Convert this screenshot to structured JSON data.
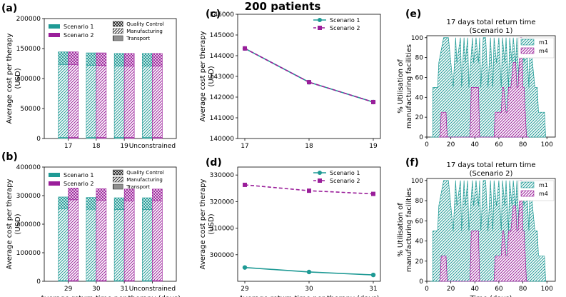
{
  "figure": {
    "suptitle": "200 patients",
    "panel_letters": [
      "(a)",
      "(b)",
      "(c)",
      "(d)",
      "(e)",
      "(f)"
    ]
  },
  "colors": {
    "scenario1": "#1f9a95",
    "scenario2": "#9a1e9a",
    "axis": "#000000"
  },
  "chart_data": [
    {
      "id": "a",
      "type": "bar",
      "title": "",
      "xlabel": "",
      "ylabel": "Average cost per therapy (USD)",
      "ylabel_lines": [
        "Average cost per therapy",
        "(USD)"
      ],
      "categories": [
        "17",
        "18",
        "19",
        "Unconstrained"
      ],
      "ylim": [
        0,
        200000
      ],
      "yticks": [
        0,
        50000,
        100000,
        150000,
        200000
      ],
      "ytick_labels": [
        "0",
        "50000",
        "100000",
        "150000",
        "200000"
      ],
      "series": [
        {
          "name": "Scenario 1",
          "values": [
            144400,
            142800,
            141800,
            141800
          ],
          "components": {
            "Transport": [
              2000,
              2000,
              2000,
              2000
            ],
            "Manufacturing": [
              121400,
              119800,
              118800,
              118800
            ],
            "Quality Control": [
              21000,
              21000,
              21000,
              21000
            ]
          }
        },
        {
          "name": "Scenario 2",
          "values": [
            144400,
            142800,
            141800,
            141800
          ],
          "components": {
            "Transport": [
              2000,
              2000,
              2000,
              2000
            ],
            "Manufacturing": [
              121400,
              119800,
              118800,
              118800
            ],
            "Quality Control": [
              21000,
              21000,
              21000,
              21000
            ]
          }
        }
      ],
      "legend_series": [
        "Scenario 1",
        "Scenario 2"
      ],
      "legend_components": [
        "Quality Control",
        "Manufacturing",
        "Transport"
      ]
    },
    {
      "id": "b",
      "type": "bar",
      "title": "",
      "xlabel": "Average return time per therapy (days)",
      "ylabel": "Average cost per therapy (USD)",
      "ylabel_lines": [
        "Average cost per therapy",
        "(USD)"
      ],
      "categories": [
        "29",
        "30",
        "31",
        "Unconstrained"
      ],
      "ylim": [
        0,
        400000
      ],
      "yticks": [
        0,
        100000,
        200000,
        300000,
        400000
      ],
      "ytick_labels": [
        "0",
        "100000",
        "200000",
        "300000",
        "400000"
      ],
      "series": [
        {
          "name": "Scenario 1",
          "values": [
            295200,
            293500,
            292400,
            292400
          ],
          "components": {
            "Transport": [
              3000,
              3000,
              3000,
              3000
            ],
            "Manufacturing": [
              251200,
              249500,
              248400,
              248400
            ],
            "Quality Control": [
              41000,
              41000,
              41000,
              41000
            ]
          }
        },
        {
          "name": "Scenario 2",
          "values": [
            326300,
            324100,
            322900,
            322900
          ],
          "components": {
            "Transport": [
              3000,
              3000,
              3000,
              3000
            ],
            "Manufacturing": [
              282300,
              280100,
              278900,
              278900
            ],
            "Quality Control": [
              41000,
              41000,
              41000,
              41000
            ]
          }
        }
      ],
      "legend_series": [
        "Scenario 1",
        "Scenario 2"
      ],
      "legend_components": [
        "Quality Control",
        "Manufacturing",
        "Transport"
      ]
    },
    {
      "id": "c",
      "type": "line",
      "title": "",
      "xlabel": "",
      "ylabel": "Average cost per therapy (USD)",
      "ylabel_lines": [
        "Average cost per therapy",
        "(USD)"
      ],
      "x": [
        17,
        18,
        19
      ],
      "xticks": [
        17,
        18,
        19
      ],
      "xlim": [
        17,
        19
      ],
      "ylim": [
        140000,
        146000
      ],
      "yticks": [
        140000,
        141000,
        142000,
        143000,
        144000,
        145000,
        146000
      ],
      "ytick_labels": [
        "140000",
        "141000",
        "142000",
        "143000",
        "144000",
        "145000",
        "146000"
      ],
      "series": [
        {
          "name": "Scenario 1",
          "values": [
            144350,
            142720,
            141760
          ],
          "marker": "circle",
          "dashed": false
        },
        {
          "name": "Scenario 2",
          "values": [
            144350,
            142720,
            141760
          ],
          "marker": "square",
          "dashed": true
        }
      ]
    },
    {
      "id": "d",
      "type": "line",
      "title": "",
      "xlabel": "Average return time per therapy (days)",
      "ylabel": "Average cost per therapy (USD)",
      "ylabel_lines": [
        "Average cost per therapy",
        "(USD)"
      ],
      "x": [
        29,
        30,
        31
      ],
      "xticks": [
        29,
        30,
        31
      ],
      "xlim": [
        29,
        31
      ],
      "ylim": [
        290000,
        333000
      ],
      "yticks": [
        300000,
        310000,
        320000,
        330000
      ],
      "ytick_labels": [
        "300000",
        "310000",
        "320000",
        "330000"
      ],
      "series": [
        {
          "name": "Scenario 1",
          "values": [
            295200,
            293500,
            292400
          ],
          "marker": "circle",
          "dashed": false
        },
        {
          "name": "Scenario 2",
          "values": [
            326300,
            324100,
            322900
          ],
          "marker": "square",
          "dashed": true
        }
      ]
    },
    {
      "id": "e",
      "type": "area",
      "title": "17 days total return time",
      "subtitle": "(Scenario 1)",
      "xlabel": "",
      "ylabel": "% Utilisation of manufacturing facilities",
      "ylabel_lines": [
        "% Utilisation of",
        "manufacturing facilities"
      ],
      "xlim": [
        0,
        107
      ],
      "ylim": [
        0,
        102
      ],
      "xticks": [
        0,
        20,
        40,
        60,
        80,
        100
      ],
      "yticks": [
        0,
        20,
        40,
        60,
        80,
        100
      ],
      "legend": [
        "m1",
        "m4"
      ],
      "series": [
        {
          "name": "m1",
          "x": [
            3,
            5,
            5,
            9,
            10,
            14,
            18,
            22,
            24,
            25,
            28,
            29,
            31,
            32,
            34,
            35,
            38,
            39,
            41,
            43,
            44,
            45,
            47,
            49,
            51,
            53,
            55,
            56,
            58,
            60,
            62,
            63,
            65,
            66,
            68,
            69,
            71,
            72,
            74,
            75,
            77,
            79,
            81,
            83,
            85,
            86,
            88,
            90,
            92,
            93,
            95,
            96,
            98,
            99
          ],
          "values": [
            0,
            0,
            50,
            50,
            75,
            100,
            100,
            50,
            100,
            75,
            100,
            50,
            100,
            75,
            100,
            50,
            100,
            75,
            100,
            75,
            100,
            50,
            100,
            100,
            50,
            100,
            50,
            100,
            75,
            100,
            50,
            100,
            75,
            100,
            50,
            100,
            75,
            100,
            75,
            100,
            50,
            100,
            75,
            100,
            50,
            100,
            75,
            50,
            50,
            25,
            25,
            25,
            25,
            0
          ]
        },
        {
          "name": "m4",
          "x": [
            10,
            11,
            12,
            16,
            17,
            18,
            35,
            36,
            37,
            43,
            44,
            45,
            55,
            56,
            57,
            62,
            63,
            64,
            66,
            67,
            68,
            70,
            72,
            74,
            75,
            76,
            78,
            79,
            80,
            81,
            83,
            84,
            85
          ],
          "values": [
            0,
            0,
            25,
            25,
            0,
            0,
            0,
            0,
            50,
            50,
            0,
            0,
            0,
            0,
            25,
            25,
            50,
            50,
            25,
            25,
            50,
            50,
            75,
            75,
            50,
            50,
            100,
            100,
            50,
            50,
            0,
            0,
            0
          ]
        }
      ]
    },
    {
      "id": "f",
      "type": "area",
      "title": "17 days total return time",
      "subtitle": "(Scenario 2)",
      "xlabel": "Time (days)",
      "ylabel": "% Utilisation of manufacturing facilities",
      "ylabel_lines": [
        "% Utilisation of",
        "manufacturing facilities"
      ],
      "xlim": [
        0,
        107
      ],
      "ylim": [
        0,
        102
      ],
      "xticks": [
        0,
        20,
        40,
        60,
        80,
        100
      ],
      "yticks": [
        0,
        20,
        40,
        60,
        80,
        100
      ],
      "legend": [
        "m1",
        "m4"
      ],
      "series": [
        {
          "name": "m1",
          "x": [
            3,
            5,
            5,
            9,
            10,
            14,
            18,
            22,
            24,
            25,
            28,
            29,
            31,
            32,
            34,
            35,
            38,
            39,
            41,
            43,
            44,
            45,
            47,
            49,
            51,
            53,
            55,
            56,
            58,
            60,
            62,
            63,
            65,
            66,
            68,
            69,
            71,
            72,
            74,
            75,
            77,
            79,
            81,
            83,
            85,
            86,
            88,
            90,
            92,
            93,
            95,
            96,
            98,
            99
          ],
          "values": [
            0,
            0,
            50,
            50,
            75,
            100,
            100,
            50,
            100,
            75,
            100,
            50,
            100,
            75,
            100,
            50,
            100,
            75,
            100,
            75,
            100,
            50,
            100,
            100,
            50,
            100,
            50,
            100,
            75,
            100,
            50,
            100,
            75,
            100,
            50,
            100,
            75,
            100,
            75,
            100,
            50,
            100,
            75,
            100,
            50,
            100,
            75,
            50,
            50,
            25,
            25,
            25,
            25,
            0
          ]
        },
        {
          "name": "m4",
          "x": [
            10,
            11,
            12,
            16,
            17,
            18,
            35,
            36,
            37,
            43,
            44,
            45,
            55,
            56,
            57,
            62,
            63,
            64,
            66,
            67,
            68,
            70,
            72,
            74,
            75,
            76,
            78,
            79,
            80,
            81,
            83,
            84,
            85
          ],
          "values": [
            0,
            0,
            25,
            25,
            0,
            0,
            0,
            0,
            50,
            50,
            0,
            0,
            0,
            0,
            25,
            25,
            50,
            50,
            25,
            25,
            50,
            50,
            75,
            75,
            50,
            50,
            100,
            100,
            50,
            50,
            0,
            0,
            0
          ]
        }
      ]
    }
  ]
}
